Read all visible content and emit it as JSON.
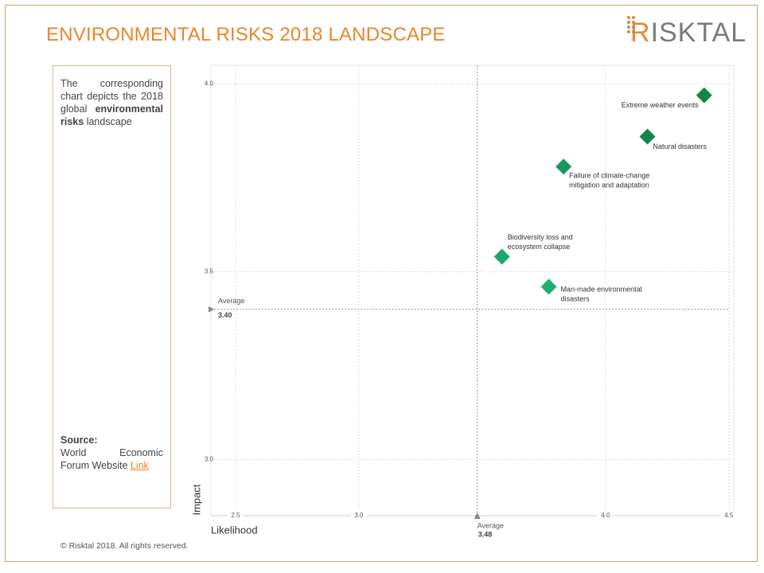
{
  "header": {
    "title": "ENVIRONMENTAL RISKS 2018 LANDSCAPE",
    "logo": "RISKTAL"
  },
  "sidebar": {
    "intro": "The corresponding chart depicts the 2018 global",
    "intro_bold": "environmental risks",
    "intro_end": "landscape",
    "source_heading": "Source:",
    "source_text": "World Economic Forum Website",
    "source_link": "Link"
  },
  "footer": "© Risktal 2018. All rights reserved.",
  "chart_data": {
    "type": "scatter",
    "x_label": "Likelihood",
    "y_label": "Impact",
    "x": [
      4.4,
      4.17,
      3.83,
      3.58,
      3.77
    ],
    "series": [
      {
        "values": [
          3.97,
          3.86,
          3.78,
          3.54,
          3.46
        ],
        "colors": [
          "#12874b",
          "#12874b",
          "#14995a",
          "#19a866",
          "#1fb070"
        ]
      }
    ],
    "point_labels": [
      [
        "Extreme weather events"
      ],
      [
        "Natural disasters"
      ],
      [
        "Failure of climate-change",
        "mitigation and adaptation"
      ],
      [
        "Biodiversity loss and",
        "ecosystem collapse"
      ],
      [
        "Man-made environmental",
        "disasters"
      ]
    ],
    "xlim": [
      2.4,
      4.52
    ],
    "ylim": [
      2.85,
      4.05
    ],
    "xticks": [
      {
        "value": 2.5,
        "label": "2.5"
      },
      {
        "value": 3,
        "label": "3.0"
      },
      {
        "value": 4,
        "label": "4.0"
      },
      {
        "value": 4.5,
        "label": "4.5"
      }
    ],
    "yticks": [
      {
        "value": 3,
        "label": "3.0"
      },
      {
        "value": 3.5,
        "label": "3.5"
      },
      {
        "value": 4,
        "label": "4.0"
      }
    ],
    "grid": true,
    "x_average": {
      "label": "Average",
      "value": 3.48,
      "value_label": "3.48"
    },
    "y_average": {
      "label": "Average",
      "value": 3.4,
      "value_label": "3.40"
    }
  }
}
